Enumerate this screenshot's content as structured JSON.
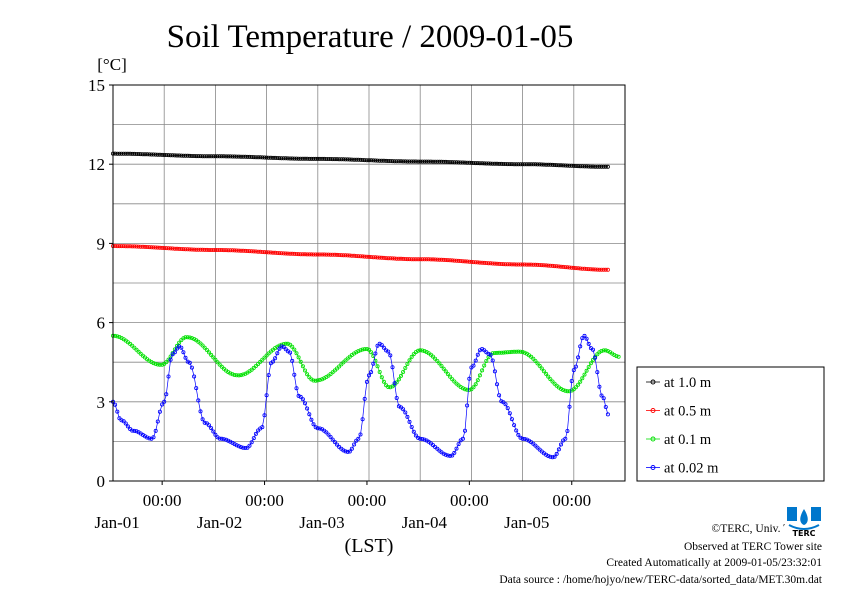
{
  "chart_data": {
    "type": "line",
    "title": "Soil Temperature / 2009-01-05",
    "ylabel": "[°C]",
    "xlabel": "(LST)",
    "ylim": [
      0,
      15
    ],
    "yticks": [
      0,
      3,
      6,
      9,
      12,
      15
    ],
    "xlim": [
      0,
      5
    ],
    "x_units": "days since 2009-01-01 00:00 LST",
    "xticks_major": [
      {
        "x": 1,
        "time": "00:00",
        "date": "Jan-01"
      },
      {
        "x": 2,
        "time": "00:00",
        "date": "Jan-02"
      },
      {
        "x": 3,
        "time": "00:00",
        "date": "Jan-03"
      },
      {
        "x": 4,
        "time": "00:00",
        "date": "Jan-04"
      },
      {
        "x": 5,
        "time": "00:00",
        "date": "Jan-05"
      }
    ],
    "grid": true,
    "legend_position": "right",
    "sample_step_days": 0.0208333,
    "series": [
      {
        "name": "at 1.0 m",
        "color": "#000000",
        "x": [
          0,
          1,
          2,
          3,
          4,
          4.84
        ],
        "y": [
          12.4,
          12.3,
          12.2,
          12.1,
          12.0,
          11.9
        ]
      },
      {
        "name": "at 0.5 m",
        "color": "#ff0000",
        "x": [
          0,
          1,
          2,
          3,
          4,
          4.84
        ],
        "y": [
          8.9,
          8.75,
          8.58,
          8.4,
          8.2,
          8.0
        ]
      },
      {
        "name": "at 0.1 m",
        "color": "#00e000",
        "x": [
          0,
          0.47,
          0.72,
          1.22,
          1.7,
          1.97,
          2.48,
          2.7,
          3.0,
          3.48,
          3.72,
          3.97,
          4.45,
          4.8,
          4.95
        ],
        "y": [
          5.5,
          4.4,
          5.45,
          4.0,
          5.2,
          3.8,
          5.0,
          3.55,
          4.95,
          3.45,
          4.85,
          4.9,
          3.4,
          4.95,
          4.7
        ]
      },
      {
        "name": "at 0.02 m",
        "color": "#0000ff",
        "x": [
          0,
          0.08,
          0.2,
          0.38,
          0.5,
          0.58,
          0.65,
          0.74,
          0.9,
          1.05,
          1.3,
          1.45,
          1.55,
          1.65,
          1.72,
          1.82,
          2.0,
          2.3,
          2.4,
          2.5,
          2.6,
          2.69,
          2.8,
          3.0,
          3.3,
          3.42,
          3.5,
          3.6,
          3.68,
          3.8,
          4.0,
          4.3,
          4.42,
          4.5,
          4.6,
          4.68,
          4.78,
          4.84
        ],
        "y": [
          3.0,
          2.3,
          1.9,
          1.6,
          3.0,
          4.8,
          5.1,
          4.5,
          2.2,
          1.6,
          1.25,
          2.0,
          4.5,
          5.1,
          4.9,
          3.2,
          2.0,
          1.1,
          1.6,
          4.0,
          5.2,
          4.9,
          2.8,
          1.6,
          0.95,
          1.6,
          4.3,
          5.0,
          4.8,
          3.0,
          1.6,
          0.9,
          1.6,
          4.2,
          5.5,
          5.0,
          3.2,
          2.5
        ]
      }
    ]
  },
  "footer": {
    "copyright": "©TERC, Univ. Tsukuba",
    "observed": "Observed at TERC Tower site",
    "created": "Created Automatically at 2009-01-05/23:32:01",
    "source": "Data source : /home/hojyo/new/TERC-data/sorted_data/MET.30m.dat"
  },
  "logo": {
    "text": "TERC",
    "color": "#0077cc"
  }
}
